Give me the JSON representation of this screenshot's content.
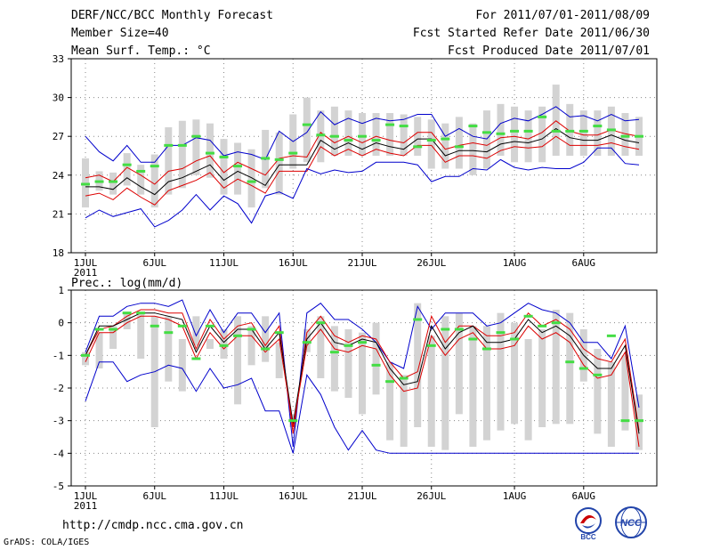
{
  "header": {
    "left": [
      "DERF/NCC/BCC Monthly Forecast",
      "Member Size=40",
      "Mean Surf. Temp.: °C"
    ],
    "right": [
      "For 2011/07/01-2011/08/09",
      "Fcst Started Refer Date 2011/06/30",
      "Fcst Produced Date 2011/07/01"
    ]
  },
  "footer": {
    "url": "http://cmdp.ncc.cma.gov.cn",
    "credit": "GrADS: COLA/IGES"
  },
  "logos": {
    "bcc": "BCC",
    "ncc": "NCC"
  },
  "colors": {
    "envelope": "#0000cc",
    "spread": "#dd0000",
    "mean": "#000000",
    "box": "#d3d3d3",
    "median": "#44dd44",
    "grid": "#888888"
  },
  "chart_data": [
    {
      "type": "line",
      "title": "Mean Surf. Temp.: °C",
      "ylim": [
        18,
        33
      ],
      "yticks": [
        18,
        21,
        24,
        27,
        30,
        33
      ],
      "xlim": [
        1,
        41
      ],
      "xticks": [
        {
          "x": 1,
          "label": "1JUL",
          "sub": "2011"
        },
        {
          "x": 6,
          "label": "6JUL"
        },
        {
          "x": 11,
          "label": "11JUL"
        },
        {
          "x": 16,
          "label": "16JUL"
        },
        {
          "x": 21,
          "label": "21JUL"
        },
        {
          "x": 26,
          "label": "26JUL"
        },
        {
          "x": 32,
          "label": "1AUG"
        },
        {
          "x": 37,
          "label": "6AUG"
        }
      ],
      "series": [
        {
          "name": "max",
          "color": "#0000cc",
          "values": [
            27.0,
            25.8,
            25.1,
            26.3,
            25.0,
            25.0,
            26.3,
            26.3,
            26.9,
            26.7,
            25.5,
            25.8,
            25.6,
            25.2,
            27.4,
            26.6,
            27.3,
            28.9,
            27.9,
            28.4,
            28.0,
            28.4,
            28.2,
            28.3,
            28.7,
            28.7,
            27.0,
            27.6,
            27.0,
            26.8,
            28.0,
            28.4,
            28.2,
            28.7,
            29.3,
            28.5,
            28.6,
            28.2,
            28.7,
            28.2,
            28.3
          ]
        },
        {
          "name": "upper",
          "color": "#dd0000",
          "values": [
            23.8,
            24.0,
            23.5,
            24.6,
            24.0,
            23.3,
            24.3,
            24.5,
            25.1,
            25.5,
            24.2,
            25.0,
            24.5,
            24.0,
            25.3,
            25.5,
            25.4,
            27.3,
            26.5,
            27.0,
            26.5,
            27.0,
            26.7,
            26.5,
            27.3,
            27.3,
            26.0,
            26.3,
            26.5,
            26.3,
            26.9,
            27.0,
            26.8,
            27.3,
            28.2,
            27.4,
            27.1,
            27.1,
            27.5,
            27.2,
            27.0
          ]
        },
        {
          "name": "mean",
          "color": "#000000",
          "values": [
            23.1,
            23.1,
            22.9,
            23.8,
            23.1,
            22.5,
            23.5,
            23.8,
            24.3,
            24.8,
            23.6,
            24.3,
            23.8,
            23.2,
            24.8,
            24.8,
            24.8,
            26.7,
            26.0,
            26.5,
            26.0,
            26.5,
            26.2,
            26.0,
            26.8,
            26.8,
            25.5,
            25.9,
            25.9,
            25.8,
            26.4,
            26.6,
            26.5,
            26.8,
            27.6,
            26.9,
            26.7,
            26.7,
            27.1,
            26.7,
            26.5
          ]
        },
        {
          "name": "lower",
          "color": "#dd0000",
          "values": [
            22.4,
            22.6,
            22.1,
            23.0,
            22.3,
            21.7,
            22.8,
            23.2,
            23.6,
            24.2,
            23.0,
            23.7,
            23.2,
            22.6,
            24.3,
            24.3,
            24.3,
            26.2,
            25.5,
            26.0,
            25.5,
            26.0,
            25.7,
            25.5,
            26.3,
            26.3,
            25.0,
            25.5,
            25.5,
            25.3,
            25.9,
            26.2,
            26.1,
            26.2,
            27.0,
            26.3,
            26.3,
            26.3,
            26.5,
            26.2,
            26.0
          ]
        },
        {
          "name": "min",
          "color": "#0000cc",
          "values": [
            20.7,
            21.3,
            20.8,
            21.1,
            21.4,
            20.0,
            20.5,
            21.3,
            22.5,
            21.3,
            22.4,
            21.8,
            20.3,
            22.4,
            22.7,
            22.2,
            24.5,
            24.1,
            24.4,
            24.2,
            24.3,
            25.0,
            25.0,
            25.0,
            24.8,
            23.5,
            23.9,
            23.9,
            24.5,
            24.4,
            25.2,
            24.6,
            24.4,
            24.6,
            24.5,
            24.5,
            25.0,
            26.1,
            26.1,
            24.9,
            24.8
          ]
        }
      ],
      "boxes": [
        [
          21.5,
          25.3
        ],
        [
          22.8,
          24.3
        ],
        [
          22.5,
          24.2
        ],
        [
          23.2,
          25.7
        ],
        [
          22.5,
          24.8
        ],
        [
          21.5,
          25.6
        ],
        [
          22.5,
          27.7
        ],
        [
          23.0,
          28.2
        ],
        [
          24.0,
          28.3
        ],
        [
          23.8,
          28.0
        ],
        [
          22.5,
          26.8
        ],
        [
          22.5,
          26.5
        ],
        [
          21.5,
          26.0
        ],
        [
          23.0,
          27.5
        ],
        [
          22.5,
          27.3
        ],
        [
          24.5,
          28.7
        ],
        [
          25.0,
          30.0
        ],
        [
          25.0,
          29.0
        ],
        [
          25.5,
          29.3
        ],
        [
          25.5,
          29.0
        ],
        [
          25.5,
          28.8
        ],
        [
          25.5,
          28.8
        ],
        [
          25.5,
          28.8
        ],
        [
          25.5,
          28.7
        ],
        [
          25.5,
          28.5
        ],
        [
          24.5,
          28.3
        ],
        [
          24.5,
          28.0
        ],
        [
          24.5,
          28.5
        ],
        [
          24.0,
          28.0
        ],
        [
          24.5,
          29.0
        ],
        [
          25.5,
          29.5
        ],
        [
          25.0,
          29.3
        ],
        [
          25.0,
          29.0
        ],
        [
          25.0,
          29.3
        ],
        [
          25.5,
          31.0
        ],
        [
          25.5,
          29.5
        ],
        [
          25.5,
          29.0
        ],
        [
          25.5,
          29.0
        ],
        [
          25.5,
          29.3
        ],
        [
          25.5,
          28.8
        ],
        [
          25.5,
          28.5
        ]
      ],
      "medians": [
        23.3,
        23.5,
        23.5,
        24.8,
        24.3,
        24.7,
        26.3,
        26.3,
        27.0,
        25.7,
        25.4,
        24.7,
        23.5,
        25.3,
        25.2,
        25.7,
        27.9,
        27.1,
        27.0,
        26.7,
        27.0,
        26.7,
        27.9,
        27.8,
        26.2,
        26.7,
        26.8,
        26.2,
        27.8,
        27.3,
        27.2,
        27.4,
        27.4,
        28.5,
        27.4,
        27.4,
        27.4,
        27.8,
        27.5,
        27.0,
        27.0
      ]
    },
    {
      "type": "line",
      "title": "Prec.: log(mm/d)",
      "ylim": [
        -5,
        1
      ],
      "yticks": [
        -5,
        -4,
        -3,
        -2,
        -1,
        0,
        1
      ],
      "xlim": [
        1,
        41
      ],
      "xticks": [
        {
          "x": 1,
          "label": "1JUL",
          "sub": "2011"
        },
        {
          "x": 6,
          "label": "6JUL"
        },
        {
          "x": 11,
          "label": "11JUL"
        },
        {
          "x": 16,
          "label": "16JUL"
        },
        {
          "x": 21,
          "label": "21JUL"
        },
        {
          "x": 26,
          "label": "26JUL"
        },
        {
          "x": 32,
          "label": "1AUG"
        },
        {
          "x": 37,
          "label": "6AUG"
        }
      ],
      "series": [
        {
          "name": "max",
          "color": "#0000cc",
          "values": [
            -0.9,
            0.2,
            0.2,
            0.5,
            0.6,
            0.6,
            0.5,
            0.7,
            -0.4,
            0.4,
            -0.3,
            0.3,
            0.3,
            -0.3,
            0.3,
            -3.8,
            0.3,
            0.6,
            0.1,
            0.1,
            -0.2,
            -0.6,
            -1.2,
            -1.4,
            0.5,
            -0.2,
            0.3,
            0.3,
            0.3,
            -0.1,
            0.0,
            0.3,
            0.6,
            0.4,
            0.3,
            0.0,
            -0.6,
            -0.6,
            -1.1,
            -0.1,
            -2.6
          ]
        },
        {
          "name": "upper",
          "color": "#dd0000",
          "values": [
            -1.0,
            -0.2,
            -0.1,
            0.2,
            0.4,
            0.4,
            0.3,
            0.3,
            -0.8,
            0.1,
            -0.5,
            -0.1,
            0.0,
            -0.7,
            -0.1,
            -3.4,
            -0.3,
            0.2,
            -0.4,
            -0.6,
            -0.4,
            -0.5,
            -1.2,
            -1.7,
            -1.5,
            0.2,
            -0.6,
            -0.1,
            -0.1,
            -0.4,
            -0.4,
            -0.3,
            0.3,
            -0.1,
            0.1,
            -0.2,
            -0.8,
            -1.1,
            -1.2,
            -0.5,
            -3.3
          ]
        },
        {
          "name": "mean",
          "color": "#000000",
          "values": [
            -1.0,
            -0.1,
            -0.1,
            0.1,
            0.3,
            0.3,
            0.2,
            0.1,
            -0.9,
            -0.1,
            -0.6,
            -0.2,
            -0.2,
            -0.8,
            -0.3,
            -3.1,
            -0.5,
            0.0,
            -0.6,
            -0.7,
            -0.5,
            -0.6,
            -1.4,
            -1.9,
            -1.8,
            -0.1,
            -0.8,
            -0.3,
            -0.1,
            -0.6,
            -0.6,
            -0.5,
            0.1,
            -0.3,
            -0.1,
            -0.4,
            -1.0,
            -1.4,
            -1.4,
            -0.7,
            -3.4
          ]
        },
        {
          "name": "lower",
          "color": "#dd0000",
          "values": [
            -1.2,
            -0.3,
            -0.3,
            0.0,
            0.2,
            0.2,
            0.1,
            -0.1,
            -1.1,
            -0.3,
            -0.8,
            -0.4,
            -0.4,
            -0.9,
            -0.5,
            -3.2,
            -0.7,
            -0.2,
            -0.8,
            -0.9,
            -0.7,
            -0.8,
            -1.6,
            -2.1,
            -2.0,
            -0.4,
            -1.0,
            -0.5,
            -0.3,
            -0.8,
            -0.8,
            -0.7,
            -0.1,
            -0.5,
            -0.3,
            -0.6,
            -1.3,
            -1.7,
            -1.6,
            -0.9,
            -3.8
          ]
        },
        {
          "name": "min",
          "color": "#0000cc",
          "values": [
            -2.4,
            -1.2,
            -1.2,
            -1.8,
            -1.6,
            -1.5,
            -1.3,
            -1.4,
            -2.1,
            -1.4,
            -2.0,
            -1.9,
            -1.7,
            -2.7,
            -2.7,
            -4.0,
            -1.6,
            -2.2,
            -3.2,
            -3.9,
            -3.3,
            -3.9,
            -4.0,
            -4.0,
            -4.0,
            -4.0,
            -4.0,
            -4.0,
            -4.0,
            -4.0,
            -4.0,
            -4.0,
            -4.0,
            -4.0,
            -4.0,
            -4.0,
            -4.0,
            -4.0,
            -4.0,
            -4.0,
            -4.0
          ]
        }
      ],
      "boxes": [
        [
          -1.3,
          -0.9
        ],
        [
          -1.4,
          -0.3
        ],
        [
          -0.8,
          -0.1
        ],
        [
          -0.2,
          0.3
        ],
        [
          -1.1,
          0.3
        ],
        [
          -3.2,
          0.2
        ],
        [
          -1.8,
          0.2
        ],
        [
          -2.1,
          -0.5
        ],
        [
          -0.7,
          0.2
        ],
        [
          -0.8,
          -0.5
        ],
        [
          -1.1,
          -0.2
        ],
        [
          -2.5,
          0.2
        ],
        [
          -1.3,
          -0.1
        ],
        [
          -1.2,
          0.2
        ],
        [
          -1.7,
          -0.6
        ],
        [
          -3.2,
          -2.8
        ],
        [
          -0.9,
          -0.2
        ],
        [
          -1.7,
          0.2
        ],
        [
          -2.1,
          -0.1
        ],
        [
          -2.3,
          -0.2
        ],
        [
          -2.8,
          -0.3
        ],
        [
          -2.2,
          0.0
        ],
        [
          -3.6,
          -1.2
        ],
        [
          -3.8,
          -1.6
        ],
        [
          -3.2,
          0.6
        ],
        [
          -3.8,
          -0.4
        ],
        [
          -3.9,
          0.2
        ],
        [
          -2.8,
          0.3
        ],
        [
          -3.8,
          -0.1
        ],
        [
          -3.6,
          -0.1
        ],
        [
          -3.3,
          0.3
        ],
        [
          -3.1,
          0.0
        ],
        [
          -3.6,
          -0.5
        ],
        [
          -3.2,
          -0.2
        ],
        [
          -3.1,
          0.4
        ],
        [
          -3.1,
          0.3
        ],
        [
          -1.8,
          -0.2
        ],
        [
          -3.4,
          -0.8
        ],
        [
          -3.8,
          -1.2
        ],
        [
          -3.3,
          -1.0
        ],
        [
          -3.9,
          -2.2
        ]
      ],
      "medians": [
        -1.0,
        -0.2,
        -0.2,
        0.3,
        0.3,
        -0.1,
        -0.3,
        -0.1,
        -1.1,
        -0.1,
        -0.7,
        -0.4,
        -0.2,
        -0.8,
        -0.3,
        -3.0,
        -0.6,
        0.0,
        -0.9,
        -0.7,
        -0.6,
        -1.3,
        -1.8,
        -1.7,
        0.1,
        -0.7,
        -0.2,
        -0.2,
        -0.5,
        -0.8,
        -0.3,
        -0.5,
        0.2,
        -0.1,
        0.0,
        -1.2,
        -1.4,
        -1.6,
        -0.4,
        -3.0,
        -3.0
      ]
    }
  ]
}
